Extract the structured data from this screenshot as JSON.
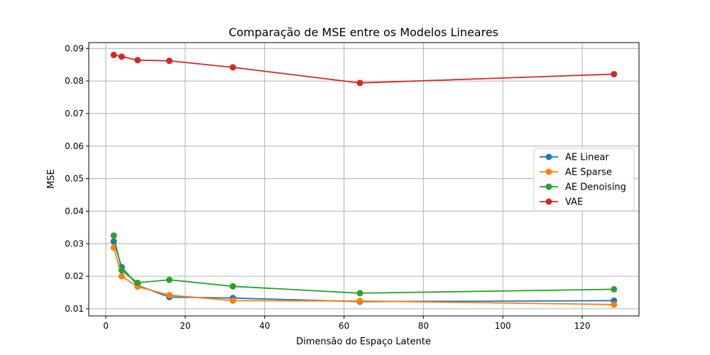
{
  "chart_data": {
    "type": "line",
    "title": "Comparação de MSE entre os Modelos Lineares",
    "xlabel": "Dimensão do Espaço Latente",
    "ylabel": "MSE",
    "xlim": [
      -4.3,
      134.3
    ],
    "ylim": [
      0.0078,
      0.0918
    ],
    "xticks": [
      0,
      20,
      40,
      60,
      80,
      100,
      120
    ],
    "yticks": [
      0.01,
      0.02,
      0.03,
      0.04,
      0.05,
      0.06,
      0.07,
      0.08,
      0.09
    ],
    "ytick_labels": [
      "0.01",
      "0.02",
      "0.03",
      "0.04",
      "0.05",
      "0.06",
      "0.07",
      "0.08",
      "0.09"
    ],
    "grid": true,
    "legend_position": "center-right",
    "x": [
      2,
      4,
      8,
      16,
      32,
      64,
      128
    ],
    "series": [
      {
        "name": "AE Linear",
        "color": "#1f77b4",
        "values": [
          0.0307,
          0.0228,
          0.0172,
          0.0136,
          0.0133,
          0.0122,
          0.0125
        ]
      },
      {
        "name": "AE Sparse",
        "color": "#ff7f0e",
        "values": [
          0.0288,
          0.02,
          0.0168,
          0.0142,
          0.0125,
          0.0124,
          0.0113
        ]
      },
      {
        "name": "AE Denoising",
        "color": "#2ca02c",
        "values": [
          0.0325,
          0.0218,
          0.018,
          0.0189,
          0.0169,
          0.0148,
          0.016
        ]
      },
      {
        "name": "VAE",
        "color": "#d62728",
        "values": [
          0.088,
          0.0875,
          0.0864,
          0.0862,
          0.0842,
          0.0794,
          0.0821
        ]
      }
    ]
  }
}
